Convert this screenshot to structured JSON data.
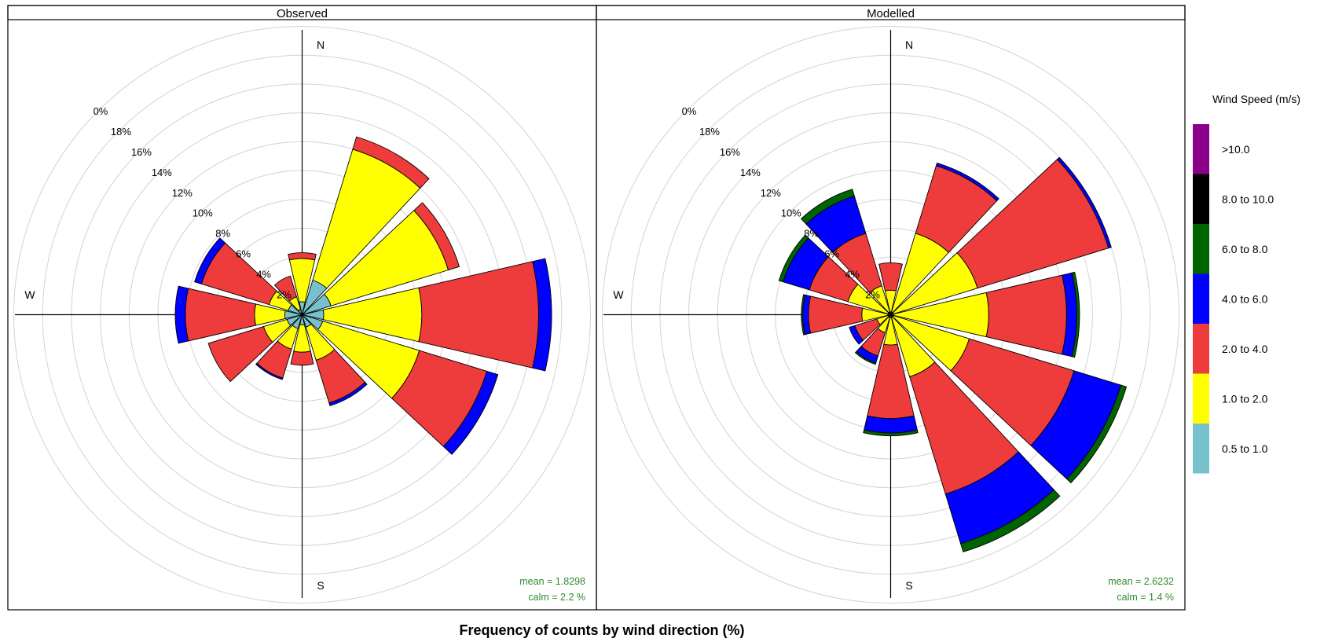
{
  "figure": {
    "xlabel": "Frequency of counts by wind direction (%)",
    "legend_title": "Wind Speed (m/s)"
  },
  "colors": {
    "calm_bin": "#76c1cc",
    "bins": [
      "#76c1cc",
      "#ffff00",
      "#ee3b3b",
      "#0000ff",
      "#006400",
      "#000000",
      "#8b008b"
    ],
    "grid": "#d3d3d3",
    "stats_text": "#2e8b2e"
  },
  "chart_data": [
    {
      "type": "windrose",
      "title": "Observed",
      "compass": {
        "n": "N",
        "s": "S",
        "w": "W"
      },
      "radial_ticks": [
        "2%",
        "4%",
        "6%",
        "8%",
        "10%",
        "12%",
        "14%",
        "16%",
        "18%",
        "0%"
      ],
      "radial_max": 20,
      "angles": [
        0,
        30,
        60,
        90,
        120,
        150,
        180,
        210,
        240,
        270,
        300,
        330
      ],
      "bins": [
        "0.5 to 1.0",
        "1.0 to 2.0",
        "2.0 to 4.0",
        "4.0 to 6.0",
        "6.0 to 8.0",
        "8.0 to 10.0",
        ">10.0"
      ],
      "stacks": [
        [
          0.9,
          3.9,
          4.3,
          4.3,
          4.3,
          4.3,
          4.3
        ],
        [
          2.5,
          12.0,
          12.9,
          12.9,
          12.9,
          12.9,
          12.9
        ],
        [
          2.1,
          10.6,
          11.4,
          11.4,
          11.4,
          11.4,
          11.4
        ],
        [
          1.5,
          8.3,
          16.4,
          17.3,
          17.3,
          17.3,
          17.3
        ],
        [
          1.5,
          8.5,
          13.4,
          14.2,
          14.2,
          14.2,
          14.2
        ],
        [
          0.9,
          3.3,
          6.4,
          6.6,
          6.6,
          6.6,
          6.6
        ],
        [
          0.7,
          2.6,
          3.5,
          3.5,
          3.5,
          3.5,
          3.5
        ],
        [
          1.0,
          2.5,
          4.6,
          4.7,
          4.7,
          4.7,
          4.7
        ],
        [
          1.1,
          2.8,
          6.8,
          6.8,
          6.8,
          6.8,
          6.8
        ],
        [
          1.2,
          3.3,
          8.1,
          8.8,
          8.8,
          8.8,
          8.8
        ],
        [
          1.0,
          2.4,
          7.3,
          7.8,
          7.8,
          7.8,
          7.8
        ],
        [
          0.4,
          1.3,
          2.8,
          2.8,
          2.8,
          2.8,
          2.8
        ]
      ],
      "stats": {
        "mean": "mean  =  1.8298",
        "calm": "calm  =  2.2 %"
      }
    },
    {
      "type": "windrose",
      "title": "Modelled",
      "compass": {
        "n": "N",
        "s": "S",
        "w": "W"
      },
      "radial_ticks": [
        "2%",
        "4%",
        "6%",
        "8%",
        "10%",
        "12%",
        "14%",
        "16%",
        "18%",
        "0%"
      ],
      "radial_max": 20,
      "angles": [
        0,
        30,
        60,
        90,
        120,
        150,
        180,
        210,
        240,
        270,
        300,
        330
      ],
      "bins": [
        "0.5 to 1.0",
        "1.0 to 2.0",
        "2.0 to 4.0",
        "4.0 to 6.0",
        "6.0 to 8.0",
        "8.0 to 10.0",
        ">10.0"
      ],
      "stacks": [
        [
          0.2,
          1.7,
          3.6,
          3.6,
          3.6,
          3.6,
          3.6
        ],
        [
          0.2,
          5.9,
          10.8,
          11.0,
          11.0,
          11.0,
          11.0
        ],
        [
          0.2,
          6.3,
          15.8,
          16.0,
          16.0,
          16.0,
          16.0
        ],
        [
          0.2,
          6.8,
          12.2,
          12.9,
          13.1,
          13.1,
          13.1
        ],
        [
          0.2,
          5.7,
          13.3,
          16.7,
          17.1,
          17.1,
          17.1
        ],
        [
          0.2,
          4.5,
          13.0,
          16.6,
          17.2,
          17.2,
          17.2
        ],
        [
          0.2,
          2.1,
          7.2,
          8.2,
          8.4,
          8.4,
          8.4
        ],
        [
          0.2,
          1.3,
          3.0,
          3.5,
          3.6,
          3.6,
          3.6
        ],
        [
          0.2,
          1.0,
          2.6,
          3.0,
          3.0,
          3.0,
          3.0
        ],
        [
          0.2,
          2.0,
          5.7,
          6.1,
          6.2,
          6.2,
          6.2
        ],
        [
          0.2,
          3.1,
          5.9,
          7.8,
          8.1,
          8.1,
          8.1
        ],
        [
          0.2,
          2.1,
          5.9,
          8.6,
          9.1,
          9.1,
          9.1
        ]
      ],
      "stats": {
        "mean": "mean  =  2.6232",
        "calm": "calm  =  1.4 %"
      }
    }
  ],
  "legend": {
    "items": [
      ">10.0",
      "8.0 to 10.0",
      "6.0 to 8.0",
      "4.0 to 6.0",
      "2.0 to 4.0",
      "1.0 to 2.0",
      "0.5 to 1.0"
    ],
    "colors": [
      "#8b008b",
      "#000000",
      "#006400",
      "#0000ff",
      "#ee3b3b",
      "#ffff00",
      "#76c1cc"
    ]
  }
}
